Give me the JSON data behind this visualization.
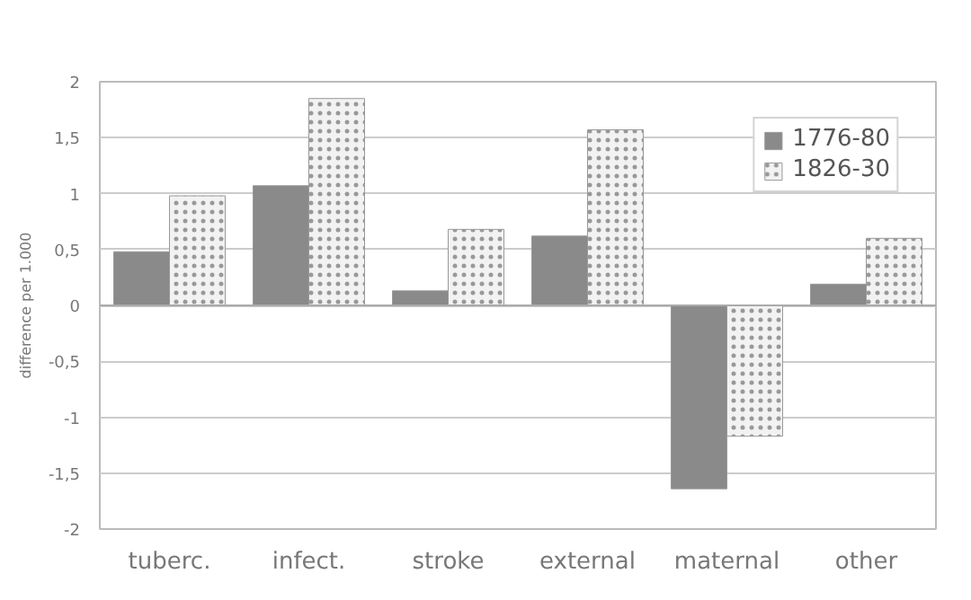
{
  "chart_data": {
    "type": "bar",
    "ylabel": "difference per 1.000",
    "categories": [
      "tuberc.",
      "infect.",
      "stroke",
      "external",
      "maternal",
      "other"
    ],
    "series": [
      {
        "name": "1776-80",
        "color": "#8a8a8a",
        "values": [
          0.48,
          1.07,
          0.13,
          0.62,
          -1.64,
          0.19
        ]
      },
      {
        "name": "1826-30",
        "color": "#f2f2f2",
        "values": [
          0.98,
          1.85,
          0.68,
          1.57,
          -1.17,
          0.6
        ]
      }
    ],
    "ylim": [
      -2,
      2
    ],
    "yticks": [
      {
        "value": -2,
        "label": "-2"
      },
      {
        "value": -1.5,
        "label": "-1,5"
      },
      {
        "value": -1,
        "label": "-1"
      },
      {
        "value": -0.5,
        "label": "-0,5"
      },
      {
        "value": 0,
        "label": "0"
      },
      {
        "value": 0.5,
        "label": "0,5"
      },
      {
        "value": 1,
        "label": "1"
      },
      {
        "value": 1.5,
        "label": "1,5"
      },
      {
        "value": 2,
        "label": "2"
      }
    ],
    "grid": "y",
    "legend": "top right"
  }
}
